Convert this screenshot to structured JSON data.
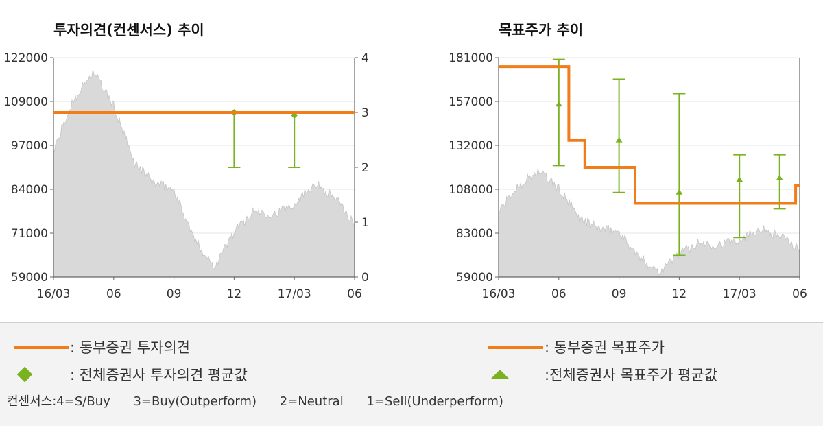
{
  "chart_data": [
    {
      "type": "line",
      "title": "투자의견(컨센서스) 추이",
      "x_ticks": [
        "16/03",
        "06",
        "09",
        "12",
        "17/03",
        "06"
      ],
      "y_left_ticks": [
        "122000",
        "109000",
        "97000",
        "84000",
        "71000",
        "59000"
      ],
      "y_left_range": [
        59000,
        122000
      ],
      "y_right_ticks": [
        "4",
        "3",
        "2",
        "1",
        "0"
      ],
      "y_right_range": [
        0,
        4
      ],
      "price_x": [
        "16/03",
        "16/04",
        "16/05",
        "16/06",
        "16/07",
        "16/08",
        "16/09",
        "16/10",
        "16/11",
        "16/12",
        "17/01",
        "17/02",
        "17/03",
        "17/04",
        "17/05",
        "17/06"
      ],
      "price_values": [
        95000,
        110000,
        118000,
        108000,
        92000,
        86000,
        84000,
        70000,
        62000,
        72000,
        78000,
        77000,
        80000,
        86000,
        82000,
        74000
      ],
      "opinion_series": {
        "name": "동부증권 투자의견",
        "x": [
          "16/03",
          "17/06"
        ],
        "values": [
          3,
          3
        ]
      },
      "avg_series": [
        {
          "x": "16/12",
          "value": 3,
          "low": 2,
          "high": 3
        },
        {
          "x": "17/03",
          "value": 2.95,
          "low": 2,
          "high": 3
        }
      ]
    },
    {
      "type": "line",
      "title": "목표주가 추이",
      "x_ticks": [
        "16/03",
        "06",
        "09",
        "12",
        "17/03",
        "06"
      ],
      "y_ticks": [
        "181000",
        "157000",
        "132000",
        "108000",
        "83000",
        "59000"
      ],
      "y_range": [
        59000,
        181000
      ],
      "price_x": [
        "16/03",
        "16/04",
        "16/05",
        "16/06",
        "16/07",
        "16/08",
        "16/09",
        "16/10",
        "16/11",
        "16/12",
        "17/01",
        "17/02",
        "17/03",
        "17/04",
        "17/05",
        "17/06"
      ],
      "price_values": [
        95000,
        110000,
        118000,
        108000,
        92000,
        86000,
        84000,
        70000,
        62000,
        72000,
        78000,
        77000,
        80000,
        86000,
        82000,
        74000
      ],
      "target_steps": [
        {
          "from": "16/03",
          "to": "16/06.5",
          "value": 176000
        },
        {
          "from": "16/06.5",
          "to": "16/07.3",
          "value": 135000
        },
        {
          "from": "16/07.3",
          "to": "16/09.8",
          "value": 120000
        },
        {
          "from": "16/09.8",
          "to": "17/05.8",
          "value": 100000
        },
        {
          "from": "17/05.8",
          "to": "17/06",
          "value": 110000
        }
      ],
      "avg_series": [
        {
          "x": "16/06",
          "value": 155000,
          "low": 121000,
          "high": 180000
        },
        {
          "x": "16/09",
          "value": 135000,
          "low": 106000,
          "high": 169000
        },
        {
          "x": "16/12",
          "value": 106000,
          "low": 71000,
          "high": 161000
        },
        {
          "x": "17/03",
          "value": 113000,
          "low": 81000,
          "high": 127000
        },
        {
          "x": "17/05",
          "value": 114000,
          "low": 97000,
          "high": 127000
        }
      ]
    }
  ],
  "legend": {
    "opinion_line": ": 동부증권  투자의견",
    "opinion_avg": ": 전체증권사  투자의견  평균값",
    "target_line": ": 동부증권  목표주가",
    "target_avg": ":전체증권사  목표주가  평균값",
    "consensus": [
      "컨센서스:4=S/Buy",
      "3=Buy(Outperform)",
      "2=Neutral",
      "1=Sell(Underperform)"
    ]
  },
  "colors": {
    "orange": "#f07d1a",
    "green": "#7ab31f",
    "area": "#d9d9d9",
    "grid": "#e6e6e6"
  }
}
